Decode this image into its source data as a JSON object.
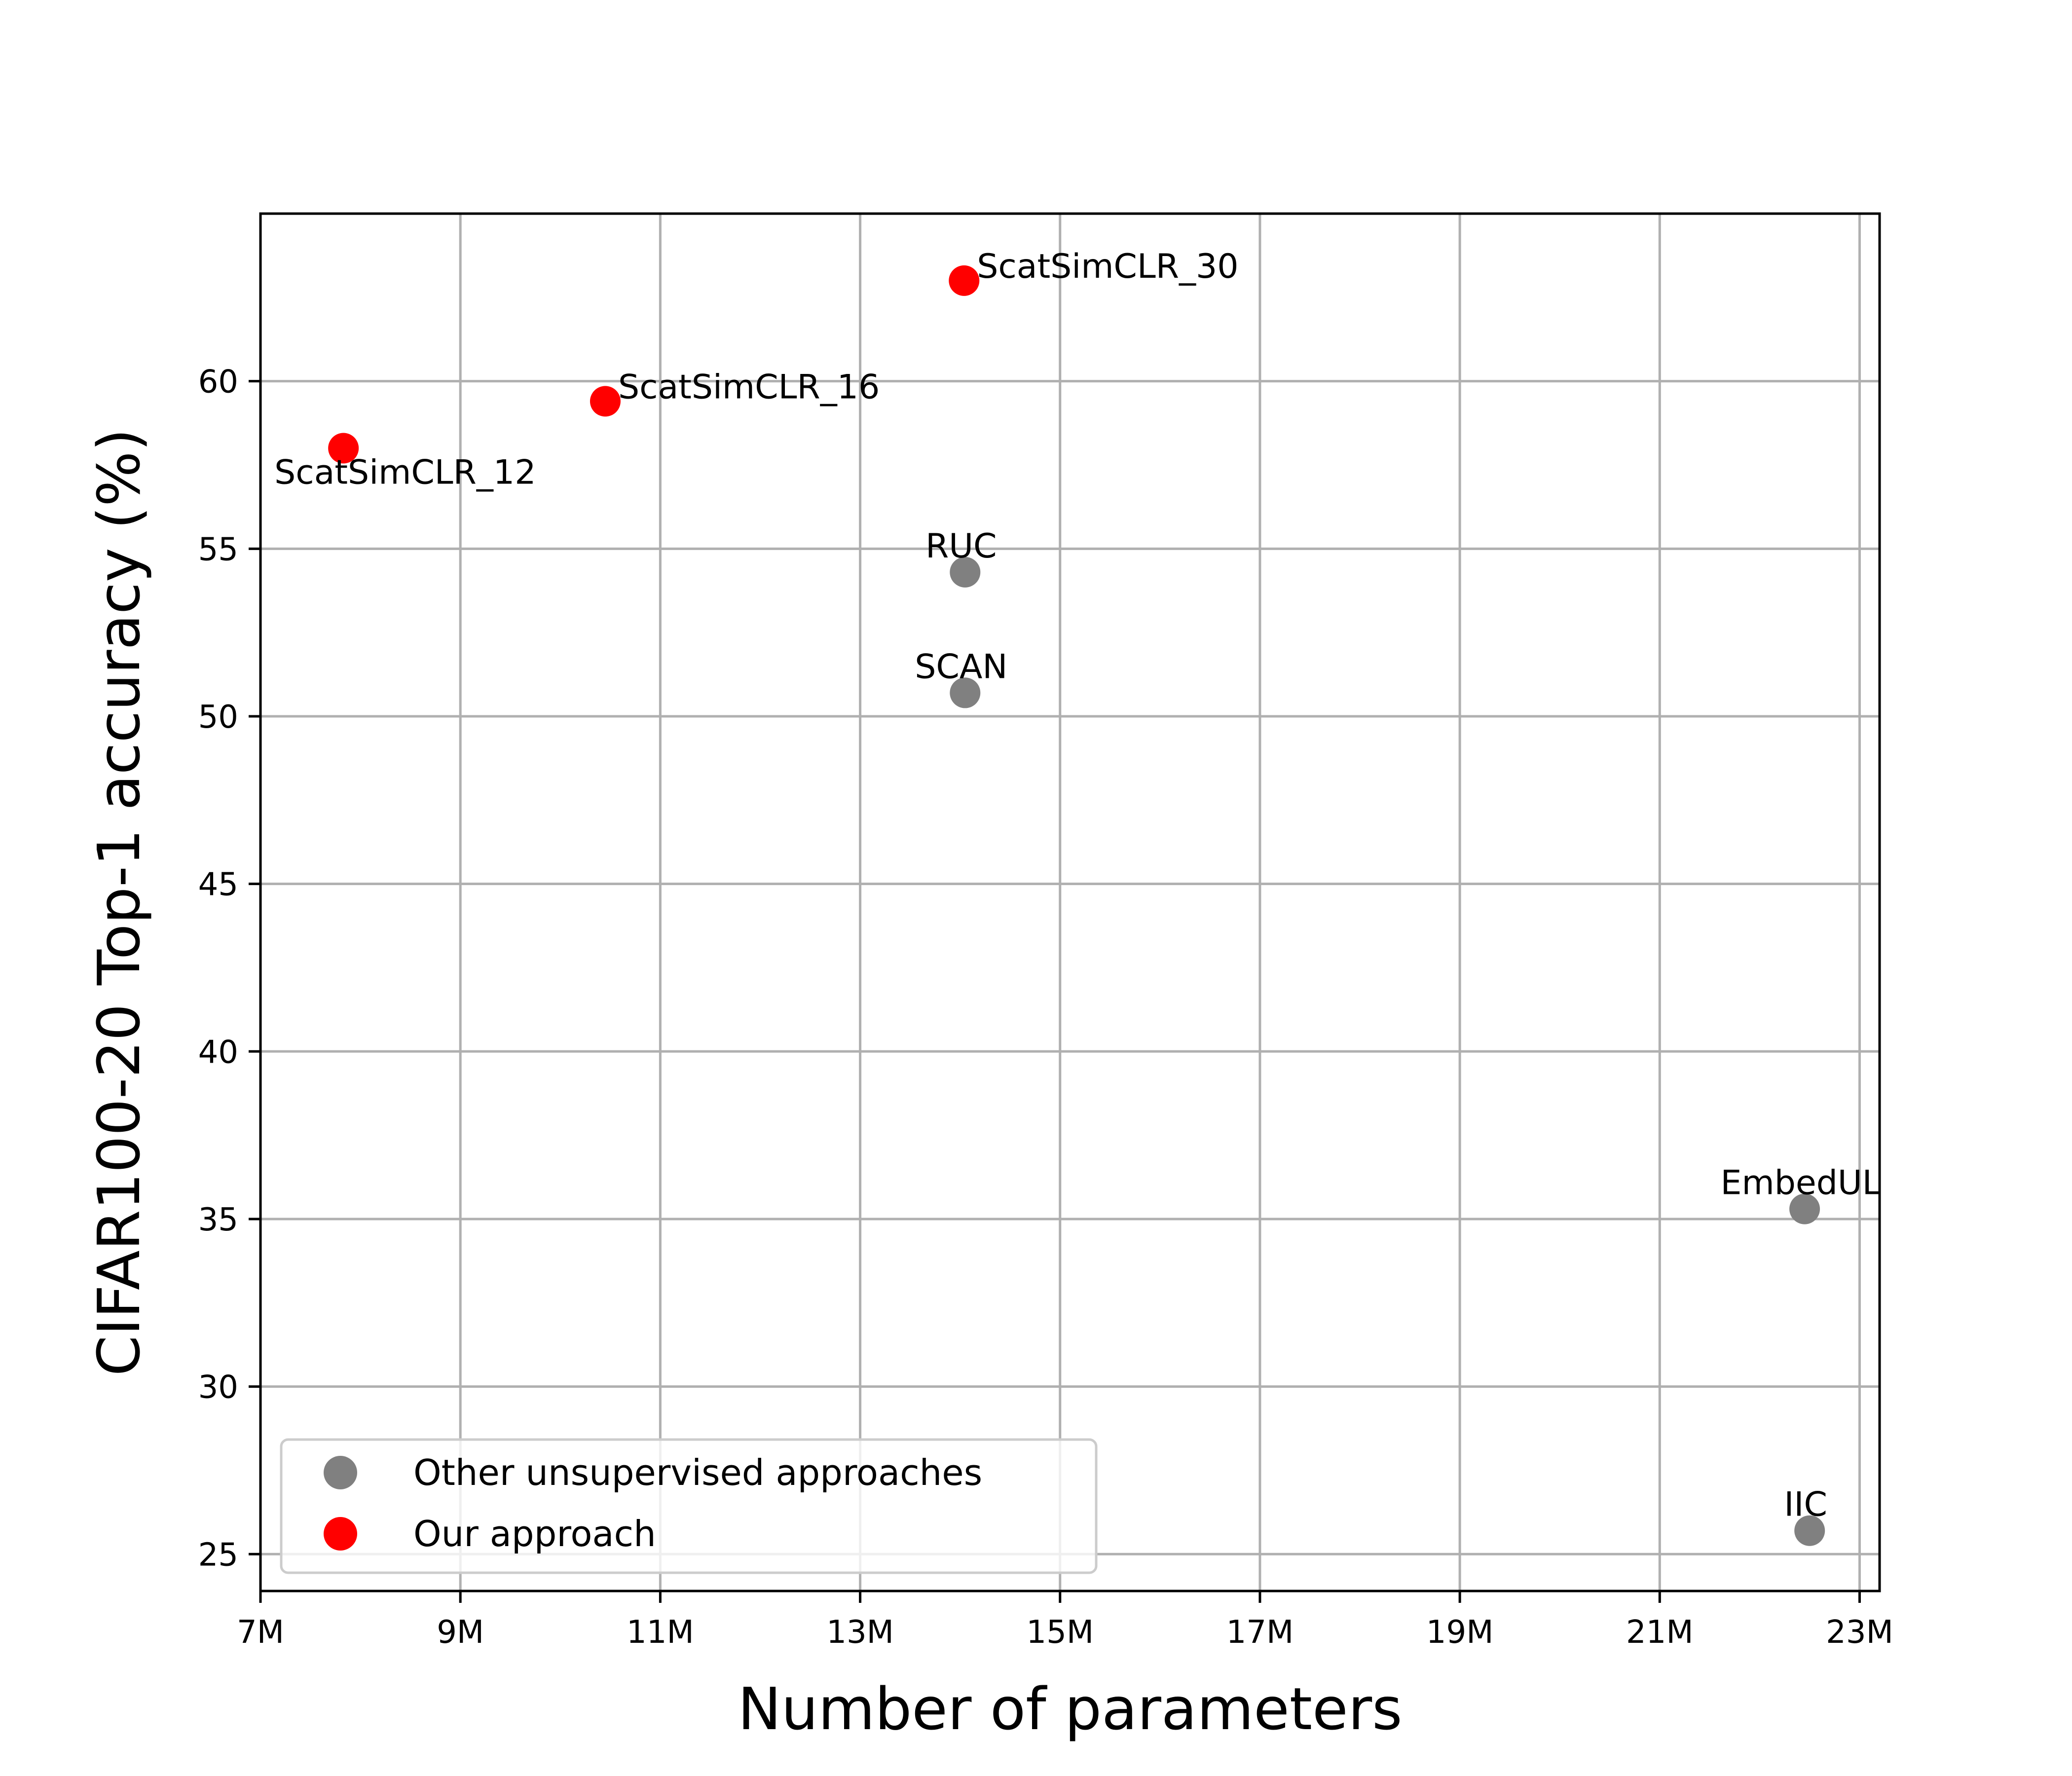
{
  "chart_data": {
    "type": "scatter",
    "xlabel": "Number of parameters",
    "ylabel": "CIFAR100-20 Top-1 accuracy (%)",
    "xlim": [
      7000000,
      23200000
    ],
    "ylim": [
      23.9,
      65
    ],
    "x_ticks": [
      {
        "value": 7000000,
        "label": "7M"
      },
      {
        "value": 9000000,
        "label": "9M"
      },
      {
        "value": 11000000,
        "label": "11M"
      },
      {
        "value": 13000000,
        "label": "13M"
      },
      {
        "value": 15000000,
        "label": "15M"
      },
      {
        "value": 17000000,
        "label": "17M"
      },
      {
        "value": 19000000,
        "label": "19M"
      },
      {
        "value": 21000000,
        "label": "21M"
      },
      {
        "value": 23000000,
        "label": "23M"
      }
    ],
    "y_ticks": [
      {
        "value": 25,
        "label": "25"
      },
      {
        "value": 30,
        "label": "30"
      },
      {
        "value": 35,
        "label": "35"
      },
      {
        "value": 40,
        "label": "40"
      },
      {
        "value": 45,
        "label": "45"
      },
      {
        "value": 50,
        "label": "50"
      },
      {
        "value": 55,
        "label": "55"
      },
      {
        "value": 60,
        "label": "60"
      }
    ],
    "grid": true,
    "legend": {
      "placement": "lower-left",
      "entries": [
        {
          "label": "Other unsupervised approaches",
          "color": "#808080"
        },
        {
          "label": "Our approach",
          "color": "#ff0000"
        }
      ]
    },
    "series": [
      {
        "name": "Other unsupervised approaches",
        "color": "#808080",
        "points": [
          {
            "label": "RUC",
            "x": 14050000,
            "y": 54.3,
            "label_pos": "above"
          },
          {
            "label": "SCAN",
            "x": 14050000,
            "y": 50.7,
            "label_pos": "above"
          },
          {
            "label": "EmbedUL",
            "x": 22450000,
            "y": 35.3,
            "label_pos": "above"
          },
          {
            "label": "IIC",
            "x": 22500000,
            "y": 25.7,
            "label_pos": "above"
          }
        ]
      },
      {
        "name": "Our approach",
        "color": "#ff0000",
        "points": [
          {
            "label": "ScatSimCLR_12",
            "x": 7830000,
            "y": 58.0,
            "label_pos": "below"
          },
          {
            "label": "ScatSimCLR_16",
            "x": 10450000,
            "y": 59.4,
            "label_pos": "right"
          },
          {
            "label": "ScatSimCLR_30",
            "x": 14040000,
            "y": 63.0,
            "label_pos": "right"
          }
        ]
      }
    ]
  }
}
